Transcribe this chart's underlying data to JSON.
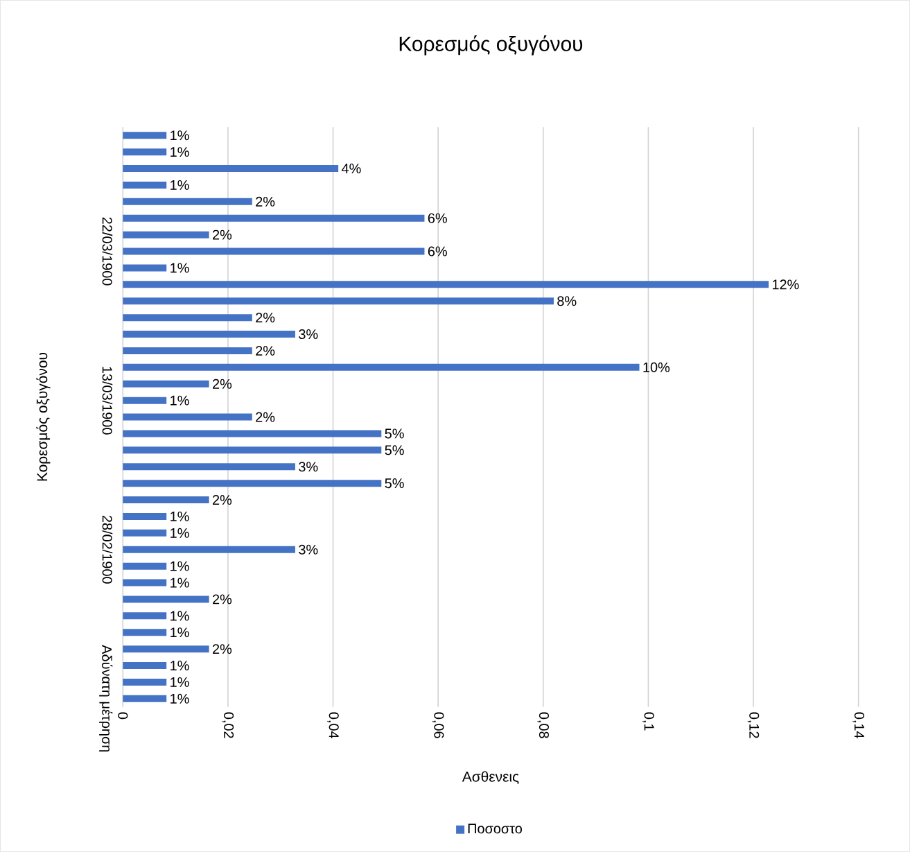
{
  "chart_data": {
    "type": "bar",
    "orientation": "horizontal",
    "title": "Κορεσμός οξυγόνου",
    "xlabel": "Ασθενεις",
    "ylabel": "Κορεσμός οξυγόνου",
    "categories": [
      null,
      null,
      null,
      null,
      null,
      null,
      null,
      "22/03/1900",
      null,
      null,
      null,
      null,
      null,
      null,
      null,
      null,
      "13/03/1900",
      null,
      null,
      null,
      null,
      null,
      null,
      null,
      null,
      "28/02/1900",
      null,
      null,
      null,
      null,
      null,
      null,
      null,
      null,
      "Αδύνατη μέτρηση"
    ],
    "series": [
      {
        "name": "Ποσοστο",
        "color": "#4472c4",
        "values": [
          0.0083,
          0.0083,
          0.041,
          0.0083,
          0.0246,
          0.0574,
          0.0164,
          0.0574,
          0.0083,
          0.1229,
          0.082,
          0.0246,
          0.0328,
          0.0246,
          0.0983,
          0.0164,
          0.0083,
          0.0246,
          0.0492,
          0.0492,
          0.0328,
          0.0492,
          0.0164,
          0.0083,
          0.0083,
          0.0328,
          0.0083,
          0.0083,
          0.0164,
          0.0083,
          0.0083,
          0.0164,
          0.0083,
          0.0083,
          0.0083
        ],
        "value_labels": [
          "1%",
          "1%",
          "4%",
          "1%",
          "2%",
          "6%",
          "2%",
          "6%",
          "1%",
          "12%",
          "8%",
          "2%",
          "3%",
          "2%",
          "10%",
          "2%",
          "1%",
          "2%",
          "5%",
          "5%",
          "3%",
          "5%",
          "2%",
          "1%",
          "1%",
          "3%",
          "1%",
          "1%",
          "2%",
          "1%",
          "1%",
          "2%",
          "1%",
          "1%",
          "1%"
        ]
      }
    ],
    "xlim": [
      0,
      0.14
    ],
    "xticks": [
      0,
      {
        "value": 0.02,
        "label": "0,02"
      },
      {
        "value": 0.04,
        "label": "0,04"
      },
      {
        "value": 0.06,
        "label": "0,06"
      },
      {
        "value": 0.08,
        "label": "0,08"
      },
      {
        "value": 0.1,
        "label": "0,1"
      },
      {
        "value": 0.12,
        "label": "0,12"
      },
      {
        "value": 0.14,
        "label": "0,14"
      }
    ],
    "grid": "x",
    "legend": "bottom"
  }
}
